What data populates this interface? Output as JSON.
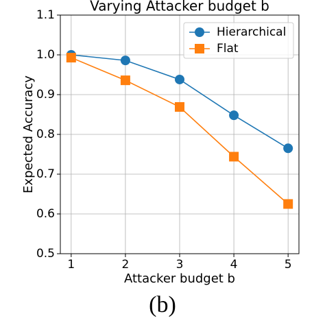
{
  "chart_data": {
    "type": "line",
    "title": "Varying Attacker budget b",
    "x_label": "Attacker budget b",
    "y_label": "Expected Accuracy",
    "caption": "(b)",
    "x": [
      1,
      2,
      3,
      4,
      5
    ],
    "series": [
      {
        "name": "Hierarchical",
        "color": "#1f77b4",
        "marker": "circle",
        "values": [
          1.0,
          0.986,
          0.938,
          0.848,
          0.765
        ]
      },
      {
        "name": "Flat",
        "color": "#ff7f0e",
        "marker": "square",
        "values": [
          0.993,
          0.936,
          0.869,
          0.744,
          0.625
        ]
      }
    ],
    "xlim": [
      0.8,
      5.2
    ],
    "xticks": [
      1,
      2,
      3,
      4,
      5
    ],
    "ylim": [
      0.5,
      1.1
    ],
    "yticks": [
      0.5,
      0.6,
      0.7,
      0.8,
      0.9,
      {
        "value": 1,
        "label": "1.0"
      },
      1.1
    ],
    "grid": true,
    "legend": "upper right"
  }
}
